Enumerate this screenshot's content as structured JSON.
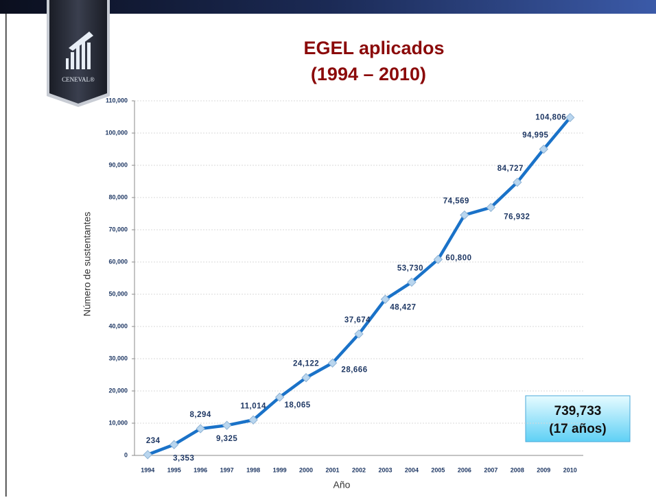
{
  "logo": {
    "text": "CENEVAL®"
  },
  "chart_data": {
    "type": "line",
    "title": [
      "EGEL  aplicados",
      "(1994 – 2010)"
    ],
    "x_label": "Año",
    "y_label": "Número de sustentantes",
    "categories": [
      "1994",
      "1995",
      "1996",
      "1997",
      "1998",
      "1999",
      "2000",
      "2001",
      "2002",
      "2003",
      "2004",
      "2005",
      "2006",
      "2007",
      "2008",
      "2009",
      "2010"
    ],
    "series": [
      {
        "name": "EGEL aplicados",
        "color": "#1a72c8",
        "values": [
          234,
          3353,
          8294,
          9325,
          11014,
          18065,
          24122,
          28666,
          37674,
          48427,
          53730,
          60800,
          74569,
          76932,
          84727,
          94995,
          104806
        ],
        "value_labels": [
          "234",
          "3,353",
          "8,294",
          "9,325",
          "11,014",
          "18,065",
          "24,122",
          "28,666",
          "37,674",
          "48,427",
          "53,730",
          "60,800",
          "74,569",
          "76,932",
          "84,727",
          "94,995",
          "104,806"
        ]
      }
    ],
    "ylim": [
      0,
      110000
    ],
    "yticks": [
      0,
      {
        "value": 10000,
        "label": "10,000"
      },
      {
        "value": 20000,
        "label": "20,000"
      },
      {
        "value": 30000,
        "label": "30,000"
      },
      {
        "value": 40000,
        "label": "40,000"
      },
      {
        "value": 50000,
        "label": "50,000"
      },
      {
        "value": 60000,
        "label": "60,000"
      },
      {
        "value": 70000,
        "label": "70,000"
      },
      {
        "value": 80000,
        "label": "80,000"
      },
      {
        "value": 90000,
        "label": "90,000"
      },
      {
        "value": 100000,
        "label": "100,000"
      },
      {
        "value": 110000,
        "label": "110,000"
      }
    ],
    "grid": true,
    "annotation": [
      "739,733",
      "(17 años)"
    ]
  }
}
